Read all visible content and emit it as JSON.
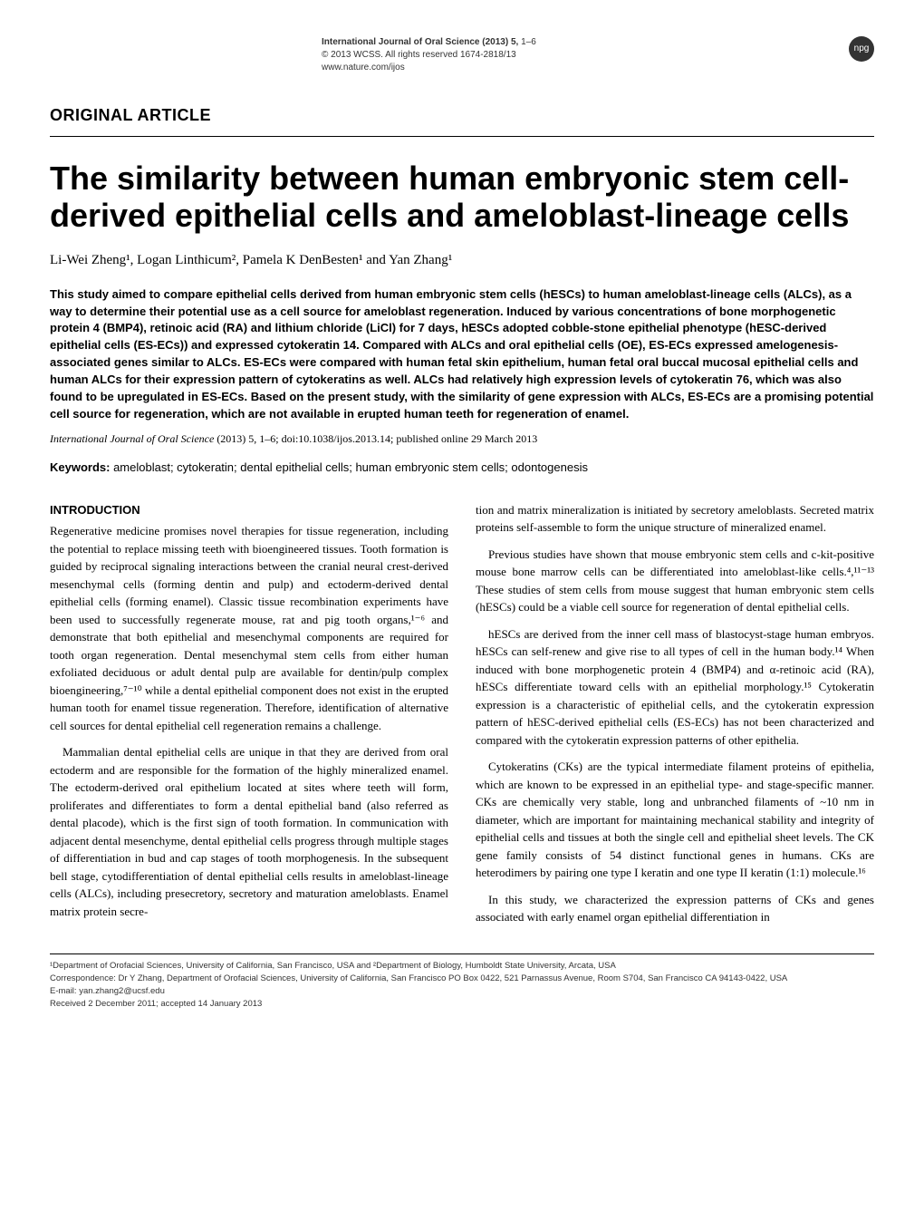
{
  "meta": {
    "journal_line": "International Journal of Oral Science (2013) 5,",
    "pages": "1–6",
    "copyright": "© 2013 WCSS. All rights reserved 1674-2818/13",
    "url": "www.nature.com/ijos",
    "badge": "npg"
  },
  "section_label": "ORIGINAL ARTICLE",
  "title": "The similarity between human embryonic stem cell-derived epithelial cells and ameloblast-lineage cells",
  "authors_html": "Li-Wei Zheng¹, Logan Linthicum², Pamela K DenBesten¹ and Yan Zhang¹",
  "abstract": "This study aimed to compare epithelial cells derived from human embryonic stem cells (hESCs) to human ameloblast-lineage cells (ALCs), as a way to determine their potential use as a cell source for ameloblast regeneration. Induced by various concentrations of bone morphogenetic protein 4 (BMP4), retinoic acid (RA) and lithium chloride (LiCl) for 7 days, hESCs adopted cobble-stone epithelial phenotype (hESC-derived epithelial cells (ES-ECs)) and expressed cytokeratin 14. Compared with ALCs and oral epithelial cells (OE), ES-ECs expressed amelogenesis-associated genes similar to ALCs. ES-ECs were compared with human fetal skin epithelium, human fetal oral buccal mucosal epithelial cells and human ALCs for their expression pattern of cytokeratins as well. ALCs had relatively high expression levels of cytokeratin 76, which was also found to be upregulated in ES-ECs. Based on the present study, with the similarity of gene expression with ALCs, ES-ECs are a promising potential cell source for regeneration, which are not available in erupted human teeth for regeneration of enamel.",
  "citation": {
    "journal_italic": "International Journal of Oral Science",
    "rest": " (2013) 5, 1–6; doi:10.1038/ijos.2013.14; published online 29 March 2013"
  },
  "keywords": {
    "label": "Keywords:",
    "text": " ameloblast; cytokeratin; dental epithelial cells; human embryonic stem cells; odontogenesis"
  },
  "body": {
    "intro_heading": "INTRODUCTION",
    "left_paras": [
      "Regenerative medicine promises novel therapies for tissue regeneration, including the potential to replace missing teeth with bioengineered tissues. Tooth formation is guided by reciprocal signaling interactions between the cranial neural crest-derived mesenchymal cells (forming dentin and pulp) and ectoderm-derived dental epithelial cells (forming enamel). Classic tissue recombination experiments have been used to successfully regenerate mouse, rat and pig tooth organs,¹⁻⁶ and demonstrate that both epithelial and mesenchymal components are required for tooth organ regeneration. Dental mesenchymal stem cells from either human exfoliated deciduous or adult dental pulp are available for dentin/pulp complex bioengineering,⁷⁻¹⁰ while a dental epithelial component does not exist in the erupted human tooth for enamel tissue regeneration. Therefore, identification of alternative cell sources for dental epithelial cell regeneration remains a challenge.",
      "Mammalian dental epithelial cells are unique in that they are derived from oral ectoderm and are responsible for the formation of the highly mineralized enamel. The ectoderm-derived oral epithelium located at sites where teeth will form, proliferates and differentiates to form a dental epithelial band (also referred as dental placode), which is the first sign of tooth formation. In communication with adjacent dental mesenchyme, dental epithelial cells progress through multiple stages of differentiation in bud and cap stages of tooth morphogenesis. In the subsequent bell stage, cytodifferentiation of dental epithelial cells results in ameloblast-lineage cells (ALCs), including presecretory, secretory and maturation ameloblasts. Enamel matrix protein secre-"
    ],
    "right_paras": [
      "tion and matrix mineralization is initiated by secretory ameloblasts. Secreted matrix proteins self-assemble to form the unique structure of mineralized enamel.",
      "Previous studies have shown that mouse embryonic stem cells and c-kit-positive mouse bone marrow cells can be differentiated into ameloblast-like cells.⁴,¹¹⁻¹³ These studies of stem cells from mouse suggest that human embryonic stem cells (hESCs) could be a viable cell source for regeneration of dental epithelial cells.",
      "hESCs are derived from the inner cell mass of blastocyst-stage human embryos. hESCs can self-renew and give rise to all types of cell in the human body.¹⁴ When induced with bone morphogenetic protein 4 (BMP4) and α-retinoic acid (RA), hESCs differentiate toward cells with an epithelial morphology.¹⁵ Cytokeratin expression is a characteristic of epithelial cells, and the cytokeratin expression pattern of hESC-derived epithelial cells (ES-ECs) has not been characterized and compared with the cytokeratin expression patterns of other epithelia.",
      "Cytokeratins (CKs) are the typical intermediate filament proteins of epithelia, which are known to be expressed in an epithelial type- and stage-specific manner. CKs are chemically very stable, long and unbranched filaments of ~10 nm in diameter, which are important for maintaining mechanical stability and integrity of epithelial cells and tissues at both the single cell and epithelial sheet levels. The CK gene family consists of 54 distinct functional genes in humans. CKs are heterodimers by pairing one type I keratin and one type II keratin (1:1) molecule.¹⁶",
      "In this study, we characterized the expression patterns of CKs and genes associated with early enamel organ epithelial differentiation in"
    ]
  },
  "footer": {
    "affil": "¹Department of Orofacial Sciences, University of California, San Francisco, USA and ²Department of Biology, Humboldt State University, Arcata, USA",
    "corr": "Correspondence: Dr Y Zhang, Department of Orofacial Sciences, University of California, San Francisco PO Box 0422, 521 Parnassus Avenue, Room S704, San Francisco CA 94143-0422, USA",
    "email": "E-mail: yan.zhang2@ucsf.edu",
    "dates": "Received 2 December 2011; accepted 14 January 2013"
  }
}
